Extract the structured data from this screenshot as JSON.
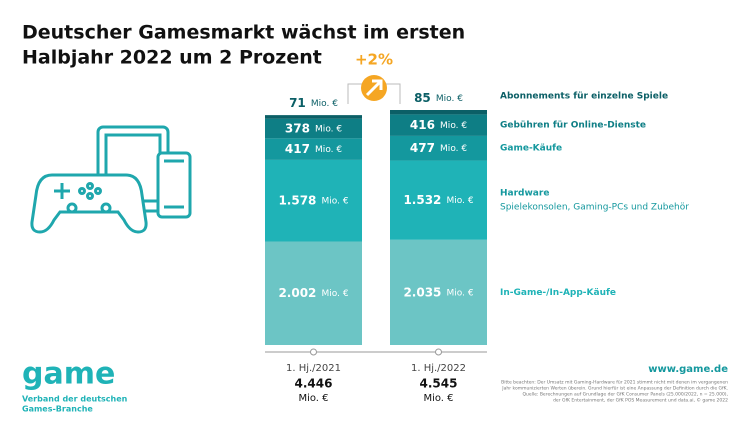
{
  "chart_data": {
    "type": "bar",
    "stacked": true,
    "title": [
      "Deutscher Gamesmarkt wächst im ersten",
      "Halbjahr 2022 um 2 Prozent"
    ],
    "unit": "Mio. €",
    "change": {
      "value": 2,
      "label": "+2%"
    },
    "categories": [
      "1. Hj./2021",
      "1. Hj./2022"
    ],
    "totals": [
      {
        "value": 4446,
        "label": "4.446"
      },
      {
        "value": 4545,
        "label": "4.545"
      }
    ],
    "series": [
      {
        "name": "In-Game-/In-App-Käufe",
        "color": "#6cc5c5",
        "values": [
          2002,
          2035
        ],
        "value_labels": [
          "2.002",
          "2.035"
        ]
      },
      {
        "name": "Hardware",
        "description": "Spielekonsolen, Gaming-PCs und Zubehör",
        "color": "#1fb3b7",
        "values": [
          1578,
          1532
        ],
        "value_labels": [
          "1.578",
          "1.532"
        ]
      },
      {
        "name": "Game-Käufe",
        "color": "#14989e",
        "values": [
          417,
          477
        ]
      },
      {
        "name": "Gebühren für Online-Dienste",
        "color": "#0e7e85",
        "values": [
          378,
          416
        ]
      },
      {
        "name": "Abonnements für einzelne Spiele",
        "color": "#0b5f66",
        "values": [
          71,
          85
        ]
      }
    ],
    "logo": "game",
    "organization": [
      "Verband der deutschen",
      "Games-Branche"
    ],
    "website": "www.game.de",
    "footnote": [
      "Bitte beachten: Der Umsatz mit Gaming-Hardware für 2021 stimmt nicht mit denen im vergangenen",
      "Jahr kommunizierten Werten überein. Grund hierfür ist eine Anpassung der Definition durch die GfK.",
      "Quelle: Berechnungen auf Grundlage der GfK Consumer Panels (25.000/2022, n = 25.000),",
      "der GfK Entertainment, der GfK POS Measurement und data.ai, © game 2022"
    ]
  }
}
